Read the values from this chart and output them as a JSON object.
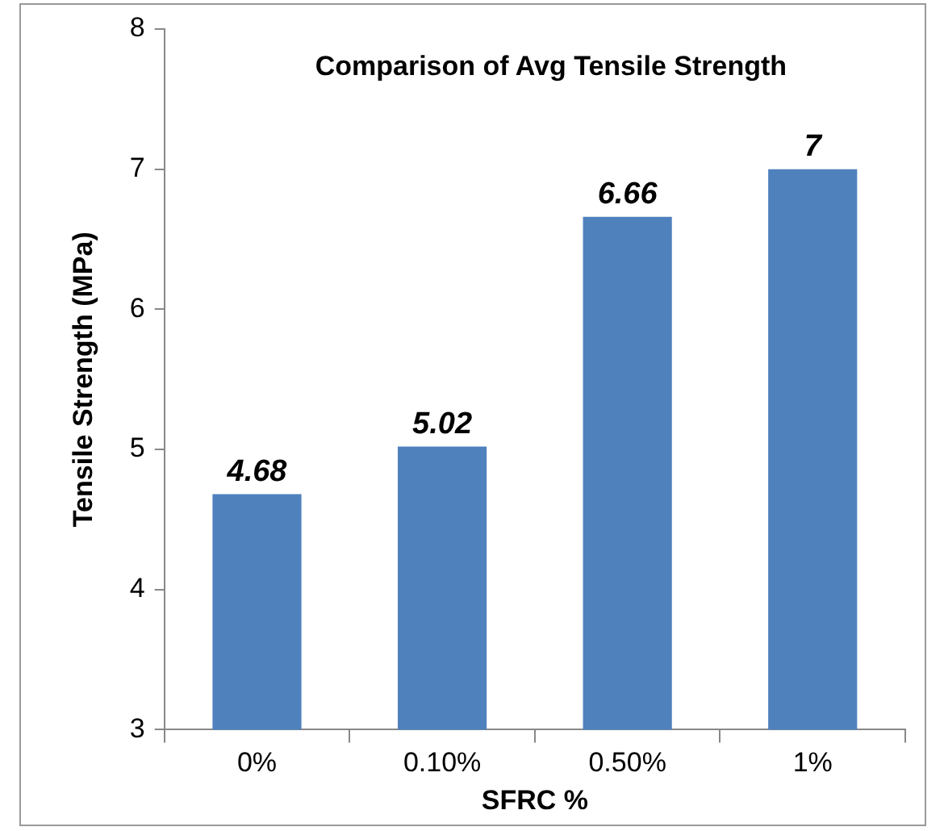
{
  "chart_data": {
    "type": "bar",
    "title": "Comparison of Avg Tensile Strength",
    "xlabel": "SFRC %",
    "ylabel": "Tensile Strength (MPa)",
    "categories": [
      "0%",
      "0.10%",
      "0.50%",
      "1%"
    ],
    "values": [
      4.68,
      5.02,
      6.66,
      7
    ],
    "color": "#4f81bd",
    "ylim": [
      3,
      8
    ],
    "yticks": [
      3,
      4,
      5,
      6,
      7,
      8
    ],
    "grid": false,
    "data_labels": true
  }
}
